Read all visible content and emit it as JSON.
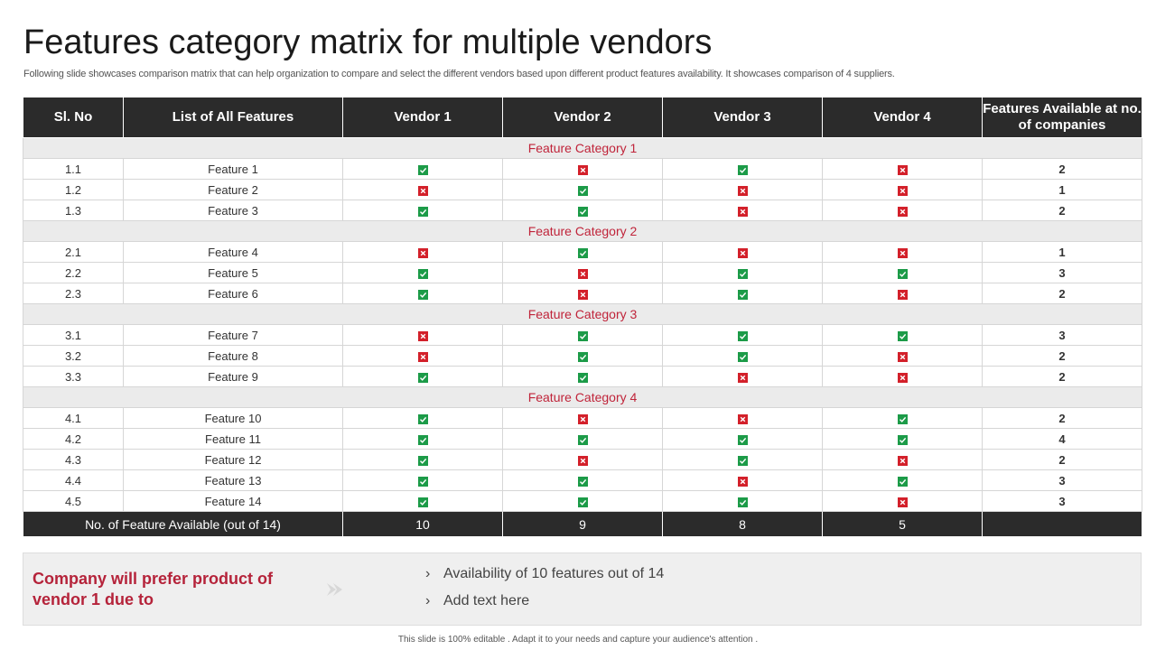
{
  "header": {
    "title": "Features category matrix for multiple vendors",
    "subtitle": "Following slide showcases comparison matrix that can help organization to compare and select the different vendors based upon different product features availability. It showcases comparison of 4 suppliers."
  },
  "table": {
    "columns": [
      "Sl. No",
      "List of All Features",
      "Vendor 1",
      "Vendor 2",
      "Vendor 3",
      "Vendor 4",
      "Features Available at no. of companies"
    ],
    "categories": [
      {
        "name": "Feature Category 1",
        "rows": [
          {
            "sl": "1.1",
            "feature": "Feature 1",
            "vendors": [
              true,
              false,
              true,
              false
            ],
            "count": 2
          },
          {
            "sl": "1.2",
            "feature": "Feature 2",
            "vendors": [
              false,
              true,
              false,
              false
            ],
            "count": 1
          },
          {
            "sl": "1.3",
            "feature": "Feature 3",
            "vendors": [
              true,
              true,
              false,
              false
            ],
            "count": 2
          }
        ]
      },
      {
        "name": "Feature Category 2",
        "rows": [
          {
            "sl": "2.1",
            "feature": "Feature 4",
            "vendors": [
              false,
              true,
              false,
              false
            ],
            "count": 1
          },
          {
            "sl": "2.2",
            "feature": "Feature 5",
            "vendors": [
              true,
              false,
              true,
              true
            ],
            "count": 3
          },
          {
            "sl": "2.3",
            "feature": "Feature 6",
            "vendors": [
              true,
              false,
              true,
              false
            ],
            "count": 2
          }
        ]
      },
      {
        "name": "Feature Category 3",
        "rows": [
          {
            "sl": "3.1",
            "feature": "Feature 7",
            "vendors": [
              false,
              true,
              true,
              true
            ],
            "count": 3
          },
          {
            "sl": "3.2",
            "feature": "Feature 8",
            "vendors": [
              false,
              true,
              true,
              false
            ],
            "count": 2
          },
          {
            "sl": "3.3",
            "feature": "Feature 9",
            "vendors": [
              true,
              true,
              false,
              false
            ],
            "count": 2
          }
        ]
      },
      {
        "name": "Feature Category 4",
        "rows": [
          {
            "sl": "4.1",
            "feature": "Feature 10",
            "vendors": [
              true,
              false,
              false,
              true
            ],
            "count": 2
          },
          {
            "sl": "4.2",
            "feature": "Feature 11",
            "vendors": [
              true,
              true,
              true,
              true
            ],
            "count": 4
          },
          {
            "sl": "4.3",
            "feature": "Feature 12",
            "vendors": [
              true,
              false,
              true,
              false
            ],
            "count": 2
          },
          {
            "sl": "4.4",
            "feature": "Feature 13",
            "vendors": [
              true,
              true,
              false,
              true
            ],
            "count": 3
          },
          {
            "sl": "4.5",
            "feature": "Feature 14",
            "vendors": [
              true,
              true,
              true,
              false
            ],
            "count": 3
          }
        ]
      }
    ],
    "total": {
      "label": "No. of Feature Available  (out of 14)",
      "values": [
        10,
        9,
        8,
        5
      ]
    }
  },
  "conclusion": {
    "heading": "Company will prefer product of vendor 1 due to",
    "points": [
      "Availability of 10 features  out of 14",
      "Add text here"
    ]
  },
  "footer": "This slide is 100% editable . Adapt it to your needs and capture your audience's attention ."
}
